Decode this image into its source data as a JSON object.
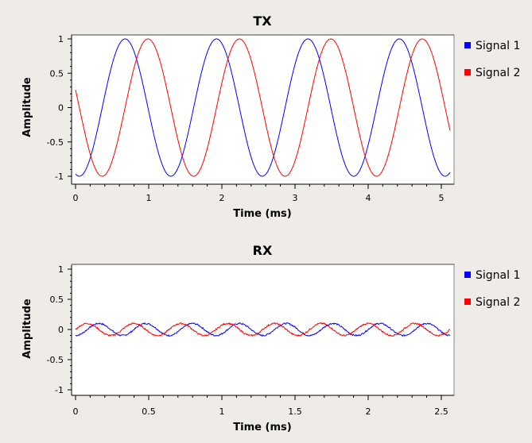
{
  "chart_data": [
    {
      "type": "line",
      "title": "TX",
      "xlabel": "Time (ms)",
      "ylabel": "Amplitude",
      "xlim": [
        0,
        5.12
      ],
      "ylim": [
        -1,
        1
      ],
      "xticks": [
        "0",
        "1",
        "2",
        "3",
        "4",
        "5"
      ],
      "xtick_values": [
        0,
        1,
        2,
        3,
        4,
        5
      ],
      "yticks": [
        "1",
        "0.5",
        "0",
        "-0.5",
        "-1"
      ],
      "ytick_values": [
        1,
        0.5,
        0,
        -0.5,
        -1
      ],
      "legend": "right",
      "grid": false,
      "series": [
        {
          "name": "Signal 1",
          "color": "#0000ff",
          "amplitude": 1.0,
          "period_ms": 1.25,
          "phase_deg": -105,
          "noise": 0
        },
        {
          "name": "Signal 2",
          "color": "#ff0000",
          "amplitude": 1.0,
          "period_ms": 1.25,
          "phase_deg": -195,
          "noise": 0
        }
      ]
    },
    {
      "type": "line",
      "title": "RX",
      "xlabel": "Time (ms)",
      "ylabel": "Amplitude",
      "xlim": [
        0,
        2.56
      ],
      "ylim": [
        -1,
        1
      ],
      "xticks": [
        "0",
        "0.5",
        "1",
        "1.5",
        "2",
        "2.5"
      ],
      "xtick_values": [
        0,
        0.5,
        1,
        1.5,
        2,
        2.5
      ],
      "yticks": [
        "1",
        "0.5",
        "0",
        "-0.5",
        "-1"
      ],
      "ytick_values": [
        1,
        0.5,
        0,
        -0.5,
        -1
      ],
      "legend": "right",
      "grid": false,
      "series": [
        {
          "name": "Signal 1",
          "color": "#0000ff",
          "amplitude": 0.1,
          "period_ms": 0.32,
          "phase_deg": -90,
          "noise": 0.012
        },
        {
          "name": "Signal 2",
          "color": "#ff0000",
          "amplitude": 0.1,
          "period_ms": 0.32,
          "phase_deg": 0,
          "noise": 0.012
        }
      ]
    }
  ]
}
